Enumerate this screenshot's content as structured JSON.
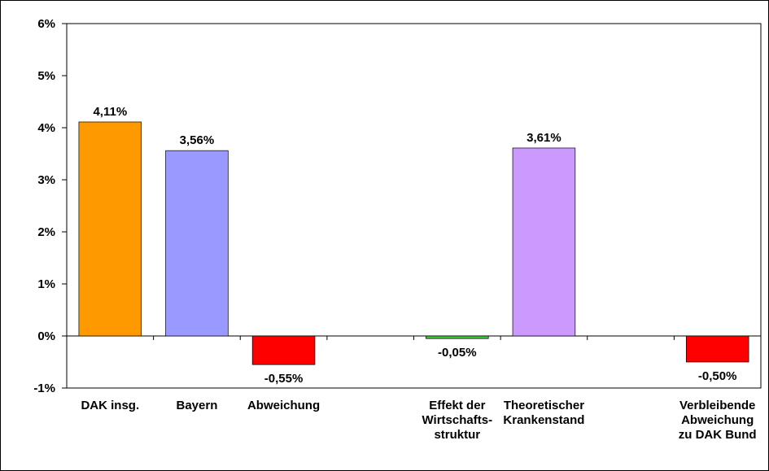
{
  "chart_data": {
    "type": "bar",
    "categories": [
      "DAK insg.",
      "Bayern",
      "Abweichung",
      null,
      "Effekt der\nWirtschafts-\nstruktur",
      "Theoretischer\nKrankenstand",
      null,
      "Verbleibende\nAbweichung\nzu DAK Bund"
    ],
    "values": [
      4.11,
      3.56,
      -0.55,
      null,
      -0.05,
      3.61,
      null,
      -0.5
    ],
    "value_labels": [
      "4,11%",
      "3,56%",
      "-0,55%",
      null,
      "-0,05%",
      "3,61%",
      null,
      "-0,50%"
    ],
    "colors": [
      "#ff9900",
      "#9999ff",
      "#ff0000",
      null,
      "#33cc33",
      "#cc99ff",
      null,
      "#ff0000"
    ],
    "ylim": [
      -1,
      6
    ],
    "yticks": [
      {
        "value": -1,
        "label": "-1%"
      },
      {
        "value": 0,
        "label": "0%"
      },
      {
        "value": 1,
        "label": "1%"
      },
      {
        "value": 2,
        "label": "2%"
      },
      {
        "value": 3,
        "label": "3%"
      },
      {
        "value": 4,
        "label": "4%"
      },
      {
        "value": 5,
        "label": "5%"
      },
      {
        "value": 6,
        "label": "6%"
      }
    ],
    "grid": false
  }
}
